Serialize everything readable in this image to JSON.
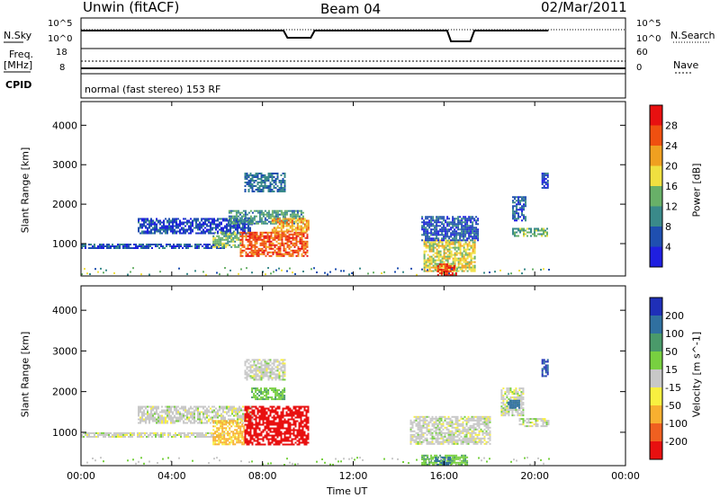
{
  "header": {
    "station": "Unwin (fitACF)",
    "beam": "Beam 04",
    "date": "02/Mar/2011"
  },
  "status_panels": {
    "nsky_label": "N.Sky",
    "nsearch_label": "N.Search",
    "freq_label_1": "Freq.",
    "freq_label_2": "[MHz]",
    "nave_label": "Nave",
    "cpid_label": "CPID",
    "left_top_ticks": [
      "10^5",
      "10^0"
    ],
    "right_top_ticks": [
      "10^5",
      "10^0"
    ],
    "left_freq_ticks": [
      "18",
      "8"
    ],
    "right_nave_ticks": [
      "60",
      "0"
    ],
    "cpid_text": "normal (fast stereo) 153 RF"
  },
  "axes": {
    "x_ticks": [
      "00:00",
      "04:00",
      "08:00",
      "12:00",
      "16:00",
      "20:00",
      "00:00"
    ],
    "x_label": "Time UT",
    "y_label": "Slant Range [km]",
    "y_ticks": [
      "1000",
      "2000",
      "3000",
      "4000"
    ]
  },
  "power_scale": {
    "label": "Power [dB]",
    "ticks": [
      "4",
      "8",
      "12",
      "16",
      "20",
      "24",
      "28"
    ],
    "colors": [
      "#1f1fe0",
      "#1f4fb0",
      "#3a8a8a",
      "#68b068",
      "#f0e040",
      "#f0a020",
      "#f05010",
      "#e81010"
    ]
  },
  "velocity_scale": {
    "label": "Velocity [m s^-1]",
    "ticks": [
      "200",
      "100",
      "50",
      "15",
      "-15",
      "-50",
      "-100",
      "-200"
    ],
    "colors": [
      "#1f2fb8",
      "#3070a0",
      "#4a9a6a",
      "#78d040",
      "#c8c8c8",
      "#f8f040",
      "#f8b030",
      "#f06020",
      "#e81010"
    ]
  },
  "chart_data": [
    {
      "type": "heatmap",
      "name": "power",
      "xlim_hours": [
        0,
        24
      ],
      "ylim_km": [
        180,
        4600
      ],
      "regions": [
        {
          "t0": 0.0,
          "t1": 6.3,
          "r0": 870,
          "r1": 1000,
          "power": 6
        },
        {
          "t0": 2.5,
          "t1": 7.5,
          "r0": 1250,
          "r1": 1650,
          "power": 5
        },
        {
          "t0": 5.8,
          "t1": 7.0,
          "r0": 900,
          "r1": 1300,
          "power": 14
        },
        {
          "t0": 6.5,
          "t1": 9.8,
          "r0": 1500,
          "r1": 1850,
          "power": 11
        },
        {
          "t0": 7.2,
          "t1": 9.0,
          "r0": 2300,
          "r1": 2800,
          "power": 8
        },
        {
          "t0": 7.0,
          "t1": 10.0,
          "r0": 700,
          "r1": 1300,
          "power": 26
        },
        {
          "t0": 8.4,
          "t1": 10.0,
          "r0": 1300,
          "r1": 1650,
          "power": 22
        },
        {
          "t0": 15.1,
          "t1": 17.4,
          "r0": 300,
          "r1": 1100,
          "power": 18
        },
        {
          "t0": 15.7,
          "t1": 16.5,
          "r0": 200,
          "r1": 500,
          "power": 28
        },
        {
          "t0": 15.0,
          "t1": 17.5,
          "r0": 1100,
          "r1": 1700,
          "power": 6
        },
        {
          "t0": 19.0,
          "t1": 20.6,
          "r0": 1200,
          "r1": 1400,
          "power": 13
        },
        {
          "t0": 19.0,
          "t1": 19.6,
          "r0": 1600,
          "r1": 2200,
          "power": 7
        },
        {
          "t0": 20.3,
          "t1": 20.6,
          "r0": 2400,
          "r1": 2800,
          "power": 5
        }
      ]
    },
    {
      "type": "heatmap",
      "name": "velocity",
      "xlim_hours": [
        0,
        24
      ],
      "ylim_km": [
        180,
        4600
      ],
      "regions": [
        {
          "t0": 0.0,
          "t1": 6.3,
          "r0": 870,
          "r1": 1000,
          "velocity": 0
        },
        {
          "t0": 2.5,
          "t1": 7.5,
          "r0": 1250,
          "r1": 1650,
          "velocity": 0
        },
        {
          "t0": 5.8,
          "t1": 7.2,
          "r0": 700,
          "r1": 1300,
          "velocity": -60
        },
        {
          "t0": 7.2,
          "t1": 10.0,
          "r0": 700,
          "r1": 1650,
          "velocity": -220
        },
        {
          "t0": 7.2,
          "t1": 9.0,
          "r0": 2300,
          "r1": 2800,
          "velocity": 0
        },
        {
          "t0": 7.5,
          "t1": 9.0,
          "r0": 1800,
          "r1": 2100,
          "velocity": 40
        },
        {
          "t0": 14.5,
          "t1": 18.0,
          "r0": 700,
          "r1": 1400,
          "velocity": 0
        },
        {
          "t0": 15.0,
          "t1": 17.0,
          "r0": 200,
          "r1": 450,
          "velocity": 40
        },
        {
          "t0": 15.6,
          "t1": 16.3,
          "r0": 200,
          "r1": 400,
          "velocity": 180
        },
        {
          "t0": 18.5,
          "t1": 19.5,
          "r0": 1400,
          "r1": 2100,
          "velocity": 0
        },
        {
          "t0": 18.8,
          "t1": 19.3,
          "r0": 1600,
          "r1": 1800,
          "velocity": 150
        },
        {
          "t0": 19.3,
          "t1": 20.6,
          "r0": 1150,
          "r1": 1350,
          "velocity": 0
        },
        {
          "t0": 20.3,
          "t1": 20.6,
          "r0": 2400,
          "r1": 2800,
          "velocity": 200
        }
      ]
    }
  ]
}
